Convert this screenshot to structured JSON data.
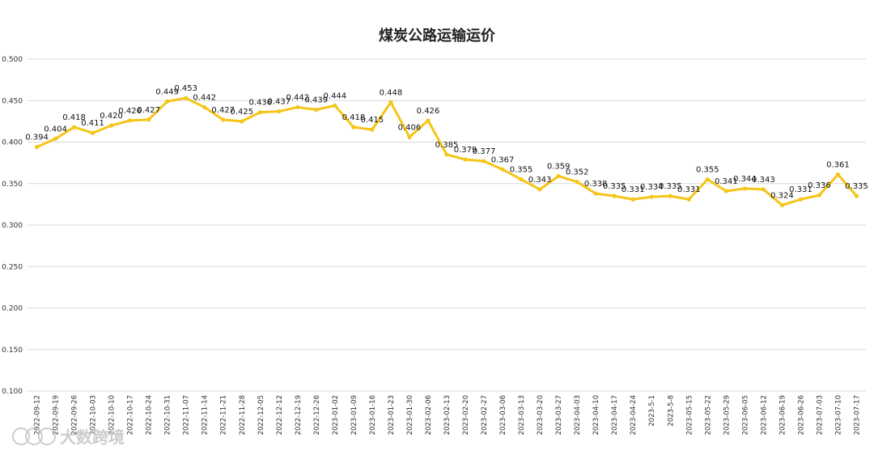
{
  "chart_data": {
    "type": "line",
    "title": "煤炭公路运输运价",
    "xlabel": "",
    "ylabel": "",
    "ylim": [
      0.1,
      0.5
    ],
    "yticks": [
      "0.100",
      "0.150",
      "0.200",
      "0.250",
      "0.300",
      "0.350",
      "0.400",
      "0.450",
      "0.500"
    ],
    "grid": true,
    "legend": "none",
    "series_color": "#F5C518",
    "categories": [
      "2022-09-12",
      "2022-09-19",
      "2022-09-26",
      "2022-10-03",
      "2022-10-10",
      "2022-10-17",
      "2022-10-24",
      "2022-10-31",
      "2022-11-07",
      "2022-11-14",
      "2022-11-21",
      "2022-11-28",
      "2022-12-05",
      "2022-12-12",
      "2022-12-19",
      "2022-12-26",
      "2023-01-02",
      "2023-01-09",
      "2023-01-16",
      "2023-01-23",
      "2023-01-30",
      "2023-02-06",
      "2023-02-13",
      "2023-02-20",
      "2023-02-27",
      "2023-03-06",
      "2023-03-13",
      "2023-03-20",
      "2023-03-27",
      "2023-04-03",
      "2023-04-10",
      "2023-04-17",
      "2023-04-24",
      "2023-5-1",
      "2023-5-8",
      "2023-05-15",
      "2023-05-22",
      "2023-05-29",
      "2023-06-05",
      "2023-06-12",
      "2023-06-19",
      "2023-06-26",
      "2023-07-03",
      "2023-07-10",
      "2023-07-17"
    ],
    "series": [
      {
        "values": [
          0.394,
          0.404,
          0.418,
          0.411,
          0.42,
          0.426,
          0.427,
          0.449,
          0.453,
          0.442,
          0.427,
          0.425,
          0.436,
          0.437,
          0.442,
          0.439,
          0.444,
          0.418,
          0.415,
          0.448,
          0.406,
          0.426,
          0.385,
          0.379,
          0.377,
          0.367,
          0.355,
          0.343,
          0.359,
          0.352,
          0.338,
          0.335,
          0.331,
          0.334,
          0.335,
          0.331,
          0.355,
          0.341,
          0.344,
          0.343,
          0.324,
          0.331,
          0.336,
          0.361,
          0.335
        ],
        "labels": [
          "0.394",
          "0.404",
          "0.418",
          "0.411",
          "0.420",
          "0.426",
          "0.427",
          "0.449",
          "0.453",
          "0.442",
          "0.427",
          "0.425",
          "0.436",
          "0.437",
          "0.442",
          "0.439",
          "0.444",
          "0.418",
          "0.415",
          "0.448",
          "0.406",
          "0.426",
          "0.385",
          "0.379",
          "0.377",
          "0.367",
          "0.355",
          "0.343",
          "0.359",
          "0.352",
          "0.338",
          "0.335",
          "0.331",
          "0.334",
          "0.335",
          "0.331",
          "0.355",
          "0.341",
          "0.344",
          "0.343",
          "0.324",
          "0.331",
          "0.336",
          "0.361",
          "0.335"
        ]
      }
    ]
  },
  "watermark": {
    "text": "大数跨境",
    "icon": "pig-logo-icon"
  }
}
